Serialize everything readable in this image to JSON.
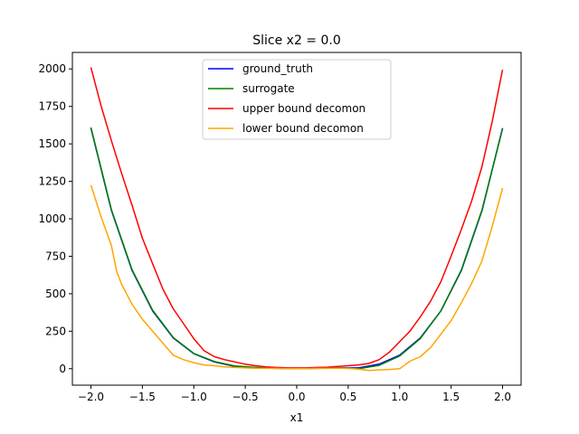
{
  "chart_data": {
    "type": "line",
    "title": "Slice x2 = 0.0",
    "xlabel": "x1",
    "ylabel": "",
    "xlim": [
      -2.18,
      2.18
    ],
    "ylim": [
      -110,
      2110
    ],
    "xticks": [
      -2.0,
      -1.5,
      -1.0,
      -0.5,
      0.0,
      0.5,
      1.0,
      1.5,
      2.0
    ],
    "xtick_labels": [
      "−2.0",
      "−1.5",
      "−1.0",
      "−0.5",
      "0.0",
      "0.5",
      "1.0",
      "1.5",
      "2.0"
    ],
    "yticks": [
      0,
      250,
      500,
      750,
      1000,
      1250,
      1500,
      1750,
      2000
    ],
    "ytick_labels": [
      "0",
      "250",
      "500",
      "750",
      "1000",
      "1250",
      "1500",
      "1750",
      "2000"
    ],
    "grid": false,
    "legend_position": "top-center",
    "series": [
      {
        "name": "ground_truth",
        "color": "#0000ff",
        "x": [
          -2.0,
          -1.8,
          -1.6,
          -1.4,
          -1.2,
          -1.0,
          -0.8,
          -0.6,
          -0.4,
          -0.2,
          0.0,
          0.2,
          0.4,
          0.6,
          0.8,
          1.0,
          1.2,
          1.4,
          1.6,
          1.8,
          2.0
        ],
        "y": [
          1605,
          1055,
          655,
          385,
          205,
          100,
          45,
          15,
          5,
          2,
          0,
          2,
          5,
          5,
          30,
          90,
          205,
          385,
          655,
          1055,
          1605
        ]
      },
      {
        "name": "surrogate",
        "color": "#008000",
        "x": [
          -2.0,
          -1.8,
          -1.6,
          -1.4,
          -1.2,
          -1.0,
          -0.8,
          -0.6,
          -0.4,
          -0.2,
          0.0,
          0.2,
          0.4,
          0.6,
          0.8,
          1.0,
          1.2,
          1.4,
          1.6,
          1.8,
          2.0
        ],
        "y": [
          1610,
          1060,
          660,
          390,
          208,
          102,
          48,
          18,
          8,
          4,
          3,
          3,
          5,
          0,
          22,
          85,
          200,
          385,
          660,
          1060,
          1600
        ]
      },
      {
        "name": "upper bound decomon",
        "color": "#ff0000",
        "x": [
          -2.0,
          -1.9,
          -1.8,
          -1.7,
          -1.6,
          -1.5,
          -1.4,
          -1.3,
          -1.2,
          -1.1,
          -1.0,
          -0.9,
          -0.8,
          -0.7,
          -0.6,
          -0.5,
          -0.4,
          -0.3,
          -0.2,
          -0.1,
          0.0,
          0.1,
          0.2,
          0.3,
          0.4,
          0.5,
          0.6,
          0.7,
          0.8,
          0.9,
          1.0,
          1.1,
          1.2,
          1.3,
          1.4,
          1.5,
          1.6,
          1.7,
          1.8,
          1.9,
          2.0
        ],
        "y": [
          2010,
          1750,
          1520,
          1300,
          1090,
          870,
          700,
          530,
          400,
          300,
          200,
          120,
          80,
          60,
          45,
          30,
          20,
          12,
          8,
          6,
          5,
          6,
          8,
          10,
          15,
          20,
          25,
          35,
          60,
          110,
          180,
          250,
          345,
          450,
          580,
          750,
          930,
          1120,
          1350,
          1650,
          1995
        ]
      },
      {
        "name": "lower bound decomon",
        "color": "#ffa500",
        "x": [
          -2.0,
          -1.9,
          -1.8,
          -1.75,
          -1.7,
          -1.6,
          -1.5,
          -1.4,
          -1.3,
          -1.2,
          -1.1,
          -1.0,
          -0.9,
          -0.8,
          -0.7,
          -0.6,
          -0.5,
          -0.4,
          -0.3,
          -0.2,
          -0.1,
          0.0,
          0.1,
          0.2,
          0.3,
          0.4,
          0.5,
          0.6,
          0.7,
          0.8,
          0.9,
          1.0,
          1.1,
          1.2,
          1.3,
          1.4,
          1.5,
          1.6,
          1.7,
          1.8,
          1.9,
          2.0
        ],
        "y": [
          1225,
          1010,
          820,
          650,
          560,
          430,
          330,
          250,
          170,
          90,
          60,
          40,
          25,
          20,
          12,
          8,
          5,
          3,
          2,
          2,
          1,
          0,
          1,
          2,
          2,
          3,
          2,
          -3,
          -12,
          -8,
          -5,
          0,
          50,
          80,
          140,
          230,
          320,
          440,
          570,
          720,
          950,
          1205
        ]
      }
    ]
  }
}
